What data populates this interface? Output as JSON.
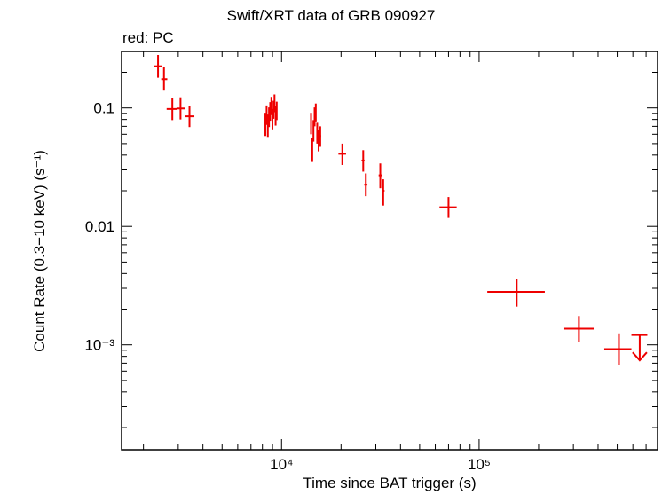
{
  "chart_data": {
    "type": "scatter",
    "title": "Swift/XRT data of GRB 090927",
    "subtitle": "red: PC",
    "xlabel": "Time since BAT trigger (s)",
    "ylabel": "Count Rate (0.3−10 keV) (s⁻¹)",
    "x_scale": "log",
    "y_scale": "log",
    "xlim": [
      1550,
      800000
    ],
    "ylim": [
      0.00013,
      0.3
    ],
    "grid": false,
    "x_ticks": [
      {
        "value": 10000,
        "label": "10⁴"
      },
      {
        "value": 100000,
        "label": "10⁵"
      }
    ],
    "y_ticks": [
      {
        "value": 0.1,
        "label": "0.1"
      },
      {
        "value": 0.01,
        "label": "0.01"
      },
      {
        "value": 0.001,
        "label": "10⁻³"
      }
    ],
    "series": [
      {
        "color": "#ee0000",
        "points": [
          {
            "x": 2370,
            "y": 0.225,
            "xlo": 2260,
            "xhi": 2480,
            "ylo": 0.18,
            "yhi": 0.28
          },
          {
            "x": 2540,
            "y": 0.175,
            "xlo": 2460,
            "xhi": 2640,
            "ylo": 0.14,
            "yhi": 0.22
          },
          {
            "x": 2800,
            "y": 0.098,
            "xlo": 2620,
            "xhi": 2960,
            "ylo": 0.079,
            "yhi": 0.122
          },
          {
            "x": 3080,
            "y": 0.099,
            "xlo": 2940,
            "xhi": 3230,
            "ylo": 0.08,
            "yhi": 0.123
          },
          {
            "x": 3420,
            "y": 0.085,
            "xlo": 3230,
            "xhi": 3620,
            "ylo": 0.069,
            "yhi": 0.104
          },
          {
            "x": 8280,
            "y": 0.074,
            "xlo": 8220,
            "xhi": 8340,
            "ylo": 0.058,
            "yhi": 0.091
          },
          {
            "x": 8400,
            "y": 0.09,
            "xlo": 8350,
            "xhi": 8450,
            "ylo": 0.072,
            "yhi": 0.105
          },
          {
            "x": 8520,
            "y": 0.072,
            "xlo": 8470,
            "xhi": 8570,
            "ylo": 0.057,
            "yhi": 0.088
          },
          {
            "x": 8640,
            "y": 0.085,
            "xlo": 8590,
            "xhi": 8690,
            "ylo": 0.069,
            "yhi": 0.101
          },
          {
            "x": 8760,
            "y": 0.095,
            "xlo": 8710,
            "xhi": 8810,
            "ylo": 0.078,
            "yhi": 0.112
          },
          {
            "x": 8880,
            "y": 0.105,
            "xlo": 8830,
            "xhi": 8930,
            "ylo": 0.087,
            "yhi": 0.124
          },
          {
            "x": 8990,
            "y": 0.082,
            "xlo": 8940,
            "xhi": 9040,
            "ylo": 0.066,
            "yhi": 0.098
          },
          {
            "x": 9100,
            "y": 0.098,
            "xlo": 9050,
            "xhi": 9150,
            "ylo": 0.081,
            "yhi": 0.115
          },
          {
            "x": 9210,
            "y": 0.11,
            "xlo": 9160,
            "xhi": 9260,
            "ylo": 0.092,
            "yhi": 0.13
          },
          {
            "x": 9330,
            "y": 0.088,
            "xlo": 9280,
            "xhi": 9380,
            "ylo": 0.071,
            "yhi": 0.104
          },
          {
            "x": 9450,
            "y": 0.096,
            "xlo": 9400,
            "xhi": 9500,
            "ylo": 0.079,
            "yhi": 0.113
          },
          {
            "x": 14100,
            "y": 0.075,
            "xlo": 14000,
            "xhi": 14250,
            "ylo": 0.06,
            "yhi": 0.091
          },
          {
            "x": 14300,
            "y": 0.045,
            "xlo": 14200,
            "xhi": 14400,
            "ylo": 0.035,
            "yhi": 0.056
          },
          {
            "x": 14500,
            "y": 0.065,
            "xlo": 14400,
            "xhi": 14600,
            "ylo": 0.052,
            "yhi": 0.079
          },
          {
            "x": 14700,
            "y": 0.085,
            "xlo": 14600,
            "xhi": 14800,
            "ylo": 0.07,
            "yhi": 0.101
          },
          {
            "x": 14900,
            "y": 0.092,
            "xlo": 14800,
            "xhi": 15000,
            "ylo": 0.077,
            "yhi": 0.109
          },
          {
            "x": 15150,
            "y": 0.062,
            "xlo": 15050,
            "xhi": 15250,
            "ylo": 0.05,
            "yhi": 0.075
          },
          {
            "x": 15400,
            "y": 0.053,
            "xlo": 15300,
            "xhi": 15550,
            "ylo": 0.043,
            "yhi": 0.065
          },
          {
            "x": 15700,
            "y": 0.058,
            "xlo": 15550,
            "xhi": 15850,
            "ylo": 0.047,
            "yhi": 0.07
          },
          {
            "x": 20300,
            "y": 0.041,
            "xlo": 19400,
            "xhi": 21200,
            "ylo": 0.033,
            "yhi": 0.05
          },
          {
            "x": 25900,
            "y": 0.036,
            "xlo": 25400,
            "xhi": 26300,
            "ylo": 0.029,
            "yhi": 0.044
          },
          {
            "x": 26700,
            "y": 0.0225,
            "xlo": 26200,
            "xhi": 27200,
            "ylo": 0.018,
            "yhi": 0.028
          },
          {
            "x": 31600,
            "y": 0.027,
            "xlo": 31000,
            "xhi": 32200,
            "ylo": 0.021,
            "yhi": 0.034
          },
          {
            "x": 32700,
            "y": 0.02,
            "xlo": 32200,
            "xhi": 33200,
            "ylo": 0.015,
            "yhi": 0.025
          },
          {
            "x": 70000,
            "y": 0.0145,
            "xlo": 63000,
            "xhi": 77000,
            "ylo": 0.0118,
            "yhi": 0.0177
          },
          {
            "x": 155000,
            "y": 0.0028,
            "xlo": 110000,
            "xhi": 215000,
            "ylo": 0.0021,
            "yhi": 0.0036
          },
          {
            "x": 320000,
            "y": 0.00137,
            "xlo": 270000,
            "xhi": 380000,
            "ylo": 0.00105,
            "yhi": 0.00175
          },
          {
            "x": 510000,
            "y": 0.00092,
            "xlo": 430000,
            "xhi": 590000,
            "ylo": 0.00067,
            "yhi": 0.00125
          }
        ],
        "upper_limits": [
          {
            "x": 650000,
            "y": 0.00121,
            "xlo": 590000,
            "xhi": 710000,
            "arrow_to": 0.00074
          }
        ]
      }
    ]
  }
}
